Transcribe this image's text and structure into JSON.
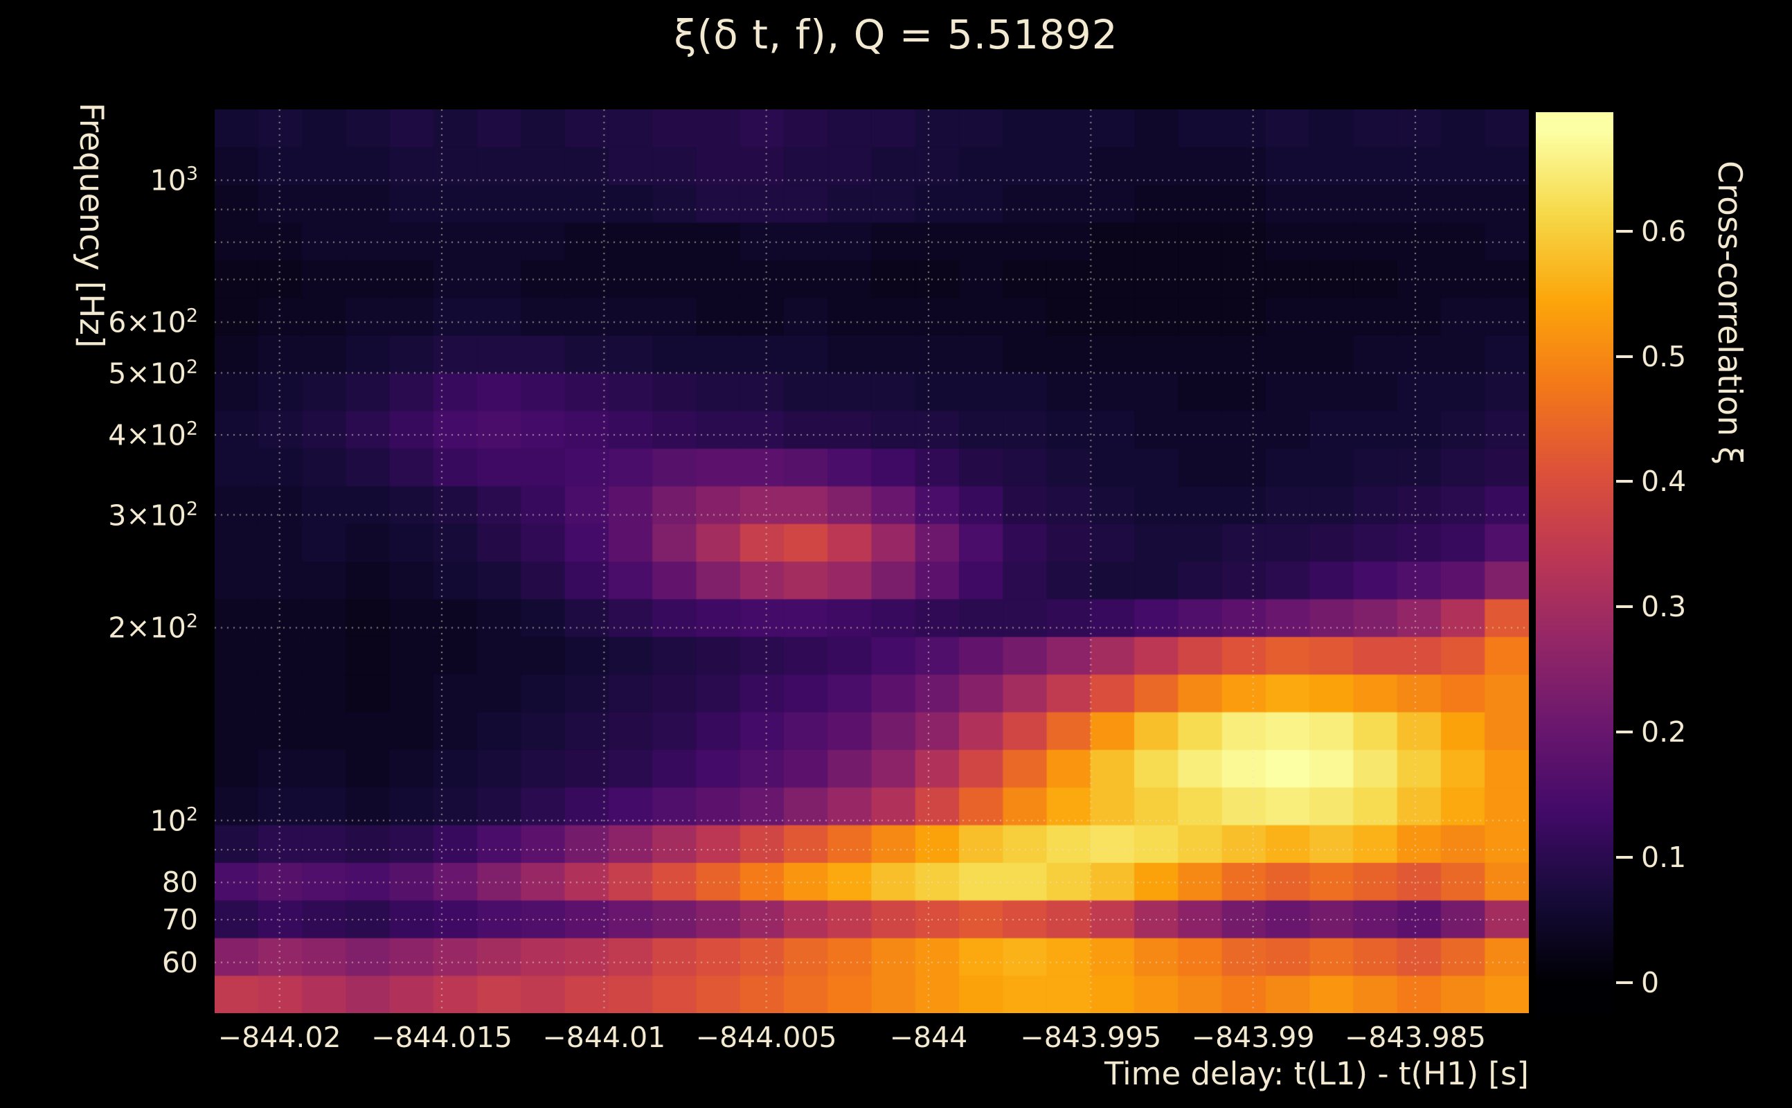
{
  "colors": {
    "background": "#000000",
    "text": "#f2e9d0",
    "grid": "rgba(235,226,200,0.6)"
  },
  "chart_data": {
    "type": "heatmap",
    "title": "ξ(δ t, f), Q = 5.51892",
    "xlabel": "Time delay: t(L1) - t(H1) [s]",
    "ylabel": "Frequency [Hz]",
    "colorbar_label": "Cross-correlation ξ",
    "x_range": [
      -844.022,
      -843.9815
    ],
    "y_range": [
      50,
      1290
    ],
    "y_scale": "log",
    "value_range": [
      0,
      0.68
    ],
    "colorbar_range": [
      -0.025,
      0.695
    ],
    "grid": true,
    "colormap": "inferno",
    "colormap_stops": [
      [
        0.0,
        [
          0,
          0,
          4
        ]
      ],
      [
        0.1,
        [
          22,
          11,
          57
        ]
      ],
      [
        0.2,
        [
          66,
          10,
          104
        ]
      ],
      [
        0.3,
        [
          106,
          23,
          110
        ]
      ],
      [
        0.4,
        [
          147,
          38,
          103
        ]
      ],
      [
        0.5,
        [
          188,
          55,
          84
        ]
      ],
      [
        0.6,
        [
          221,
          81,
          58
        ]
      ],
      [
        0.7,
        [
          243,
          120,
          25
        ]
      ],
      [
        0.8,
        [
          252,
          165,
          10
        ]
      ],
      [
        0.9,
        [
          246,
          215,
          70
        ]
      ],
      [
        1.0,
        [
          252,
          255,
          164
        ]
      ]
    ],
    "x_ticks": [
      {
        "v": -844.02,
        "label": "−844.02"
      },
      {
        "v": -844.015,
        "label": "−844.015"
      },
      {
        "v": -844.01,
        "label": "−844.01"
      },
      {
        "v": -844.005,
        "label": "−844.005"
      },
      {
        "v": -844.0,
        "label": "−844"
      },
      {
        "v": -843.995,
        "label": "−843.995"
      },
      {
        "v": -843.99,
        "label": "−843.99"
      },
      {
        "v": -843.985,
        "label": "−843.985"
      }
    ],
    "y_ticks": [
      {
        "v": 1000,
        "label": "10",
        "sup": "3"
      },
      {
        "v": 600,
        "label": "6×10",
        "sup": "2"
      },
      {
        "v": 500,
        "label": "5×10",
        "sup": "2"
      },
      {
        "v": 400,
        "label": "4×10",
        "sup": "2"
      },
      {
        "v": 300,
        "label": "3×10",
        "sup": "2"
      },
      {
        "v": 200,
        "label": "2×10",
        "sup": "2"
      },
      {
        "v": 100,
        "label": "10",
        "sup": "2"
      },
      {
        "v": 80,
        "label": "80"
      },
      {
        "v": 70,
        "label": "70"
      },
      {
        "v": 60,
        "label": "60"
      }
    ],
    "y_gridlines": [
      60,
      70,
      80,
      90,
      100,
      200,
      300,
      400,
      500,
      600,
      700,
      800,
      900,
      1000
    ],
    "colorbar_ticks": [
      {
        "v": 0.0,
        "label": "0"
      },
      {
        "v": 0.1,
        "label": "0.1"
      },
      {
        "v": 0.2,
        "label": "0.2"
      },
      {
        "v": 0.3,
        "label": "0.3"
      },
      {
        "v": 0.4,
        "label": "0.4"
      },
      {
        "v": 0.5,
        "label": "0.5"
      },
      {
        "v": 0.6,
        "label": "0.6"
      }
    ],
    "n_cols": 30,
    "n_rows": 24,
    "row_order": "bottom-to-top",
    "y_bin_centers_hz": [
      53.5,
      61.3,
      70.2,
      80.3,
      92.0,
      105.3,
      120.6,
      138.1,
      158.1,
      181.0,
      207.2,
      237.3,
      271.7,
      311.1,
      356.2,
      407.8,
      466.9,
      534.6,
      612.1,
      700.8,
      802.4,
      918.7,
      1051.9,
      1204.3
    ],
    "values": [
      [
        0.35,
        0.34,
        0.32,
        0.3,
        0.32,
        0.34,
        0.36,
        0.35,
        0.37,
        0.38,
        0.4,
        0.42,
        0.44,
        0.46,
        0.48,
        0.5,
        0.52,
        0.54,
        0.55,
        0.55,
        0.54,
        0.52,
        0.5,
        0.48,
        0.5,
        0.52,
        0.5,
        0.48,
        0.5,
        0.52
      ],
      [
        0.25,
        0.27,
        0.26,
        0.24,
        0.26,
        0.28,
        0.3,
        0.32,
        0.33,
        0.35,
        0.38,
        0.4,
        0.42,
        0.45,
        0.47,
        0.5,
        0.52,
        0.55,
        0.56,
        0.55,
        0.53,
        0.5,
        0.48,
        0.45,
        0.44,
        0.46,
        0.44,
        0.42,
        0.45,
        0.5
      ],
      [
        0.1,
        0.12,
        0.11,
        0.1,
        0.12,
        0.13,
        0.15,
        0.16,
        0.18,
        0.2,
        0.22,
        0.25,
        0.28,
        0.32,
        0.35,
        0.38,
        0.4,
        0.42,
        0.4,
        0.38,
        0.35,
        0.3,
        0.26,
        0.22,
        0.2,
        0.22,
        0.2,
        0.18,
        0.22,
        0.3
      ],
      [
        0.15,
        0.17,
        0.16,
        0.15,
        0.17,
        0.2,
        0.24,
        0.28,
        0.32,
        0.36,
        0.4,
        0.44,
        0.48,
        0.52,
        0.55,
        0.58,
        0.6,
        0.62,
        0.62,
        0.6,
        0.58,
        0.54,
        0.5,
        0.46,
        0.44,
        0.46,
        0.44,
        0.42,
        0.45,
        0.5
      ],
      [
        0.08,
        0.1,
        0.1,
        0.09,
        0.1,
        0.12,
        0.15,
        0.18,
        0.22,
        0.26,
        0.3,
        0.34,
        0.38,
        0.42,
        0.46,
        0.5,
        0.54,
        0.58,
        0.6,
        0.62,
        0.63,
        0.62,
        0.6,
        0.58,
        0.56,
        0.58,
        0.56,
        0.52,
        0.5,
        0.52
      ],
      [
        0.05,
        0.06,
        0.06,
        0.05,
        0.06,
        0.07,
        0.08,
        0.1,
        0.12,
        0.14,
        0.16,
        0.18,
        0.2,
        0.24,
        0.28,
        0.32,
        0.38,
        0.44,
        0.5,
        0.55,
        0.58,
        0.6,
        0.62,
        0.64,
        0.65,
        0.64,
        0.62,
        0.58,
        0.55,
        0.52
      ],
      [
        0.04,
        0.05,
        0.05,
        0.04,
        0.05,
        0.06,
        0.07,
        0.08,
        0.09,
        0.1,
        0.12,
        0.14,
        0.16,
        0.18,
        0.22,
        0.26,
        0.32,
        0.38,
        0.45,
        0.52,
        0.58,
        0.62,
        0.65,
        0.67,
        0.68,
        0.67,
        0.64,
        0.6,
        0.56,
        0.52
      ],
      [
        0.04,
        0.04,
        0.04,
        0.04,
        0.04,
        0.05,
        0.06,
        0.07,
        0.08,
        0.09,
        0.1,
        0.12,
        0.14,
        0.16,
        0.18,
        0.22,
        0.26,
        0.32,
        0.38,
        0.45,
        0.52,
        0.58,
        0.62,
        0.65,
        0.66,
        0.65,
        0.62,
        0.58,
        0.54,
        0.5
      ],
      [
        0.04,
        0.04,
        0.04,
        0.03,
        0.04,
        0.05,
        0.05,
        0.06,
        0.07,
        0.08,
        0.09,
        0.1,
        0.12,
        0.13,
        0.15,
        0.18,
        0.21,
        0.25,
        0.3,
        0.35,
        0.4,
        0.45,
        0.5,
        0.53,
        0.55,
        0.54,
        0.52,
        0.5,
        0.48,
        0.5
      ],
      [
        0.04,
        0.04,
        0.04,
        0.03,
        0.04,
        0.04,
        0.05,
        0.05,
        0.06,
        0.07,
        0.08,
        0.09,
        0.1,
        0.11,
        0.12,
        0.14,
        0.16,
        0.19,
        0.22,
        0.26,
        0.3,
        0.34,
        0.38,
        0.41,
        0.43,
        0.42,
        0.4,
        0.4,
        0.42,
        0.48
      ],
      [
        0.04,
        0.04,
        0.04,
        0.03,
        0.04,
        0.04,
        0.05,
        0.06,
        0.08,
        0.1,
        0.12,
        0.13,
        0.14,
        0.14,
        0.13,
        0.12,
        0.11,
        0.1,
        0.1,
        0.11,
        0.12,
        0.14,
        0.16,
        0.18,
        0.2,
        0.22,
        0.24,
        0.27,
        0.32,
        0.42
      ],
      [
        0.05,
        0.05,
        0.05,
        0.04,
        0.05,
        0.06,
        0.07,
        0.09,
        0.12,
        0.15,
        0.19,
        0.24,
        0.28,
        0.3,
        0.28,
        0.23,
        0.18,
        0.13,
        0.1,
        0.08,
        0.07,
        0.07,
        0.08,
        0.09,
        0.1,
        0.12,
        0.14,
        0.16,
        0.18,
        0.24
      ],
      [
        0.05,
        0.05,
        0.06,
        0.05,
        0.06,
        0.07,
        0.09,
        0.11,
        0.14,
        0.18,
        0.24,
        0.3,
        0.36,
        0.38,
        0.34,
        0.28,
        0.21,
        0.15,
        0.11,
        0.09,
        0.08,
        0.07,
        0.07,
        0.08,
        0.08,
        0.09,
        0.1,
        0.11,
        0.12,
        0.16
      ],
      [
        0.05,
        0.05,
        0.06,
        0.06,
        0.07,
        0.08,
        0.1,
        0.12,
        0.15,
        0.18,
        0.22,
        0.25,
        0.27,
        0.27,
        0.24,
        0.2,
        0.15,
        0.12,
        0.09,
        0.08,
        0.07,
        0.06,
        0.06,
        0.06,
        0.07,
        0.07,
        0.08,
        0.09,
        0.1,
        0.12
      ],
      [
        0.06,
        0.06,
        0.07,
        0.08,
        0.1,
        0.12,
        0.13,
        0.13,
        0.14,
        0.15,
        0.17,
        0.18,
        0.18,
        0.17,
        0.15,
        0.13,
        0.11,
        0.09,
        0.08,
        0.07,
        0.06,
        0.06,
        0.05,
        0.05,
        0.06,
        0.06,
        0.07,
        0.07,
        0.08,
        0.09
      ],
      [
        0.06,
        0.07,
        0.08,
        0.1,
        0.12,
        0.14,
        0.15,
        0.14,
        0.13,
        0.12,
        0.11,
        0.1,
        0.1,
        0.09,
        0.09,
        0.08,
        0.08,
        0.07,
        0.07,
        0.06,
        0.06,
        0.05,
        0.05,
        0.05,
        0.05,
        0.06,
        0.06,
        0.06,
        0.07,
        0.08
      ],
      [
        0.05,
        0.06,
        0.07,
        0.08,
        0.1,
        0.12,
        0.13,
        0.12,
        0.11,
        0.1,
        0.09,
        0.08,
        0.08,
        0.07,
        0.07,
        0.07,
        0.06,
        0.06,
        0.06,
        0.05,
        0.05,
        0.05,
        0.04,
        0.04,
        0.05,
        0.05,
        0.05,
        0.06,
        0.06,
        0.07
      ],
      [
        0.04,
        0.05,
        0.05,
        0.06,
        0.07,
        0.08,
        0.08,
        0.08,
        0.07,
        0.07,
        0.06,
        0.06,
        0.06,
        0.06,
        0.05,
        0.05,
        0.05,
        0.05,
        0.04,
        0.04,
        0.04,
        0.04,
        0.04,
        0.04,
        0.04,
        0.04,
        0.05,
        0.05,
        0.05,
        0.06
      ],
      [
        0.03,
        0.04,
        0.04,
        0.05,
        0.05,
        0.06,
        0.06,
        0.05,
        0.05,
        0.05,
        0.05,
        0.04,
        0.04,
        0.05,
        0.04,
        0.04,
        0.04,
        0.04,
        0.04,
        0.03,
        0.03,
        0.03,
        0.03,
        0.03,
        0.04,
        0.04,
        0.04,
        0.04,
        0.05,
        0.05
      ],
      [
        0.03,
        0.03,
        0.04,
        0.04,
        0.04,
        0.05,
        0.05,
        0.04,
        0.04,
        0.04,
        0.04,
        0.04,
        0.04,
        0.04,
        0.04,
        0.03,
        0.03,
        0.04,
        0.03,
        0.03,
        0.03,
        0.03,
        0.03,
        0.03,
        0.03,
        0.03,
        0.03,
        0.04,
        0.04,
        0.04
      ],
      [
        0.04,
        0.04,
        0.05,
        0.05,
        0.05,
        0.05,
        0.05,
        0.05,
        0.04,
        0.04,
        0.04,
        0.04,
        0.05,
        0.05,
        0.05,
        0.04,
        0.04,
        0.04,
        0.04,
        0.04,
        0.03,
        0.03,
        0.03,
        0.03,
        0.04,
        0.04,
        0.04,
        0.04,
        0.04,
        0.05
      ],
      [
        0.04,
        0.05,
        0.05,
        0.05,
        0.06,
        0.06,
        0.06,
        0.06,
        0.06,
        0.06,
        0.07,
        0.08,
        0.08,
        0.08,
        0.07,
        0.07,
        0.06,
        0.06,
        0.05,
        0.05,
        0.05,
        0.04,
        0.04,
        0.04,
        0.05,
        0.05,
        0.05,
        0.05,
        0.05,
        0.05
      ],
      [
        0.05,
        0.06,
        0.06,
        0.06,
        0.07,
        0.07,
        0.07,
        0.07,
        0.07,
        0.08,
        0.08,
        0.09,
        0.09,
        0.08,
        0.08,
        0.07,
        0.07,
        0.06,
        0.06,
        0.06,
        0.05,
        0.05,
        0.05,
        0.05,
        0.06,
        0.06,
        0.06,
        0.06,
        0.06,
        0.06
      ],
      [
        0.06,
        0.07,
        0.06,
        0.07,
        0.08,
        0.07,
        0.08,
        0.07,
        0.08,
        0.08,
        0.09,
        0.09,
        0.1,
        0.09,
        0.08,
        0.08,
        0.07,
        0.07,
        0.06,
        0.06,
        0.06,
        0.05,
        0.06,
        0.06,
        0.07,
        0.06,
        0.07,
        0.07,
        0.06,
        0.07
      ]
    ]
  }
}
